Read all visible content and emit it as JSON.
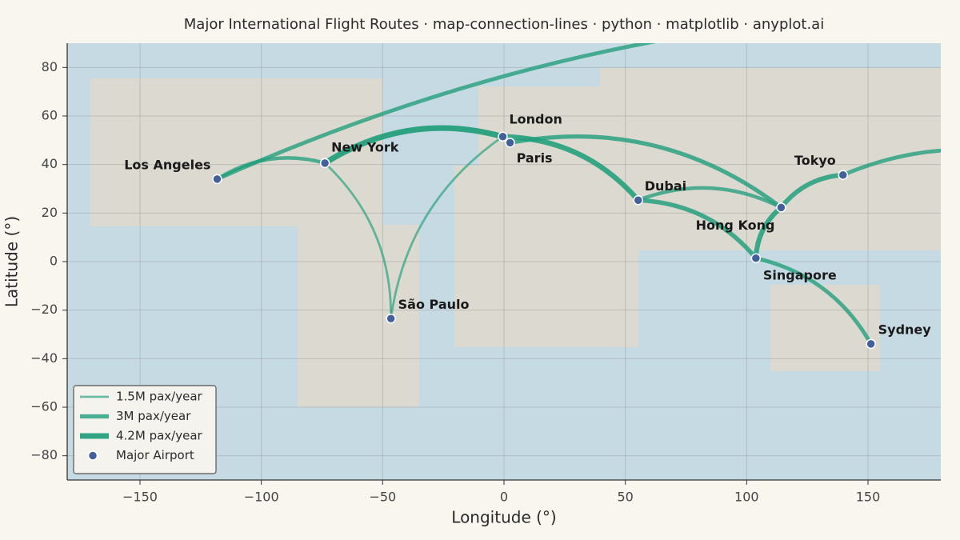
{
  "chart_data": {
    "type": "connection-map",
    "title": "Major International Flight Routes · map-connection-lines · python · matplotlib · anyplot.ai",
    "x_label": "Longitude (°)",
    "y_label": "Latitude (°)",
    "xlim": [
      -180,
      180
    ],
    "ylim": [
      -90,
      90
    ],
    "xticks": [
      {
        "value": -150,
        "label": "−150"
      },
      {
        "value": -100,
        "label": "−100"
      },
      {
        "value": -50,
        "label": "−50"
      },
      0,
      50,
      100,
      150
    ],
    "yticks": [
      {
        "value": -80,
        "label": "−80"
      },
      {
        "value": -60,
        "label": "−60"
      },
      {
        "value": -40,
        "label": "−40"
      },
      {
        "value": -20,
        "label": "−20"
      },
      0,
      20,
      40,
      60,
      80
    ],
    "grid": true,
    "route_color": "#1f9e7a",
    "airport_color": "#44609c",
    "airports": [
      {
        "name": "Los Angeles",
        "lon": -118.2,
        "lat": 34.0
      },
      {
        "name": "New York",
        "lon": -73.8,
        "lat": 40.6
      },
      {
        "name": "São Paulo",
        "lon": -46.6,
        "lat": -23.5
      },
      {
        "name": "London",
        "lon": -0.5,
        "lat": 51.5
      },
      {
        "name": "Paris",
        "lon": 2.5,
        "lat": 49.0
      },
      {
        "name": "Dubai",
        "lon": 55.3,
        "lat": 25.3
      },
      {
        "name": "Hong Kong",
        "lon": 114.2,
        "lat": 22.3
      },
      {
        "name": "Singapore",
        "lon": 103.8,
        "lat": 1.4
      },
      {
        "name": "Tokyo",
        "lon": 139.7,
        "lat": 35.7
      },
      {
        "name": "Sydney",
        "lon": 151.2,
        "lat": -33.9
      }
    ],
    "routes": [
      {
        "from": "New York",
        "to": "London",
        "traffic": 4.2
      },
      {
        "from": "London",
        "to": "Dubai",
        "traffic": 3.8
      },
      {
        "from": "Dubai",
        "to": "Singapore",
        "traffic": 3.2
      },
      {
        "from": "Dubai",
        "to": "Hong Kong",
        "traffic": 2.6
      },
      {
        "from": "Paris",
        "to": "Hong Kong",
        "traffic": 3.0
      },
      {
        "from": "Hong Kong",
        "to": "Tokyo",
        "traffic": 3.4
      },
      {
        "from": "Singapore",
        "to": "Hong Kong",
        "traffic": 3.6
      },
      {
        "from": "Los Angeles",
        "to": "New York",
        "traffic": 2.6
      },
      {
        "from": "Tokyo",
        "to": "Los Angeles",
        "traffic": 2.8
      },
      {
        "from": "New York",
        "to": "São Paulo",
        "traffic": 1.5
      },
      {
        "from": "São Paulo",
        "to": "London",
        "traffic": 1.5
      },
      {
        "from": "Singapore",
        "to": "Sydney",
        "traffic": 2.8
      }
    ],
    "legend": {
      "location": "lower left",
      "entries": [
        {
          "value": 1.5,
          "label": "1.5M pax/year"
        },
        {
          "value": 3,
          "label": "3M pax/year"
        },
        {
          "value": 4.2,
          "label": "4.2M pax/year"
        }
      ],
      "airport_label": "Major Airport"
    }
  }
}
